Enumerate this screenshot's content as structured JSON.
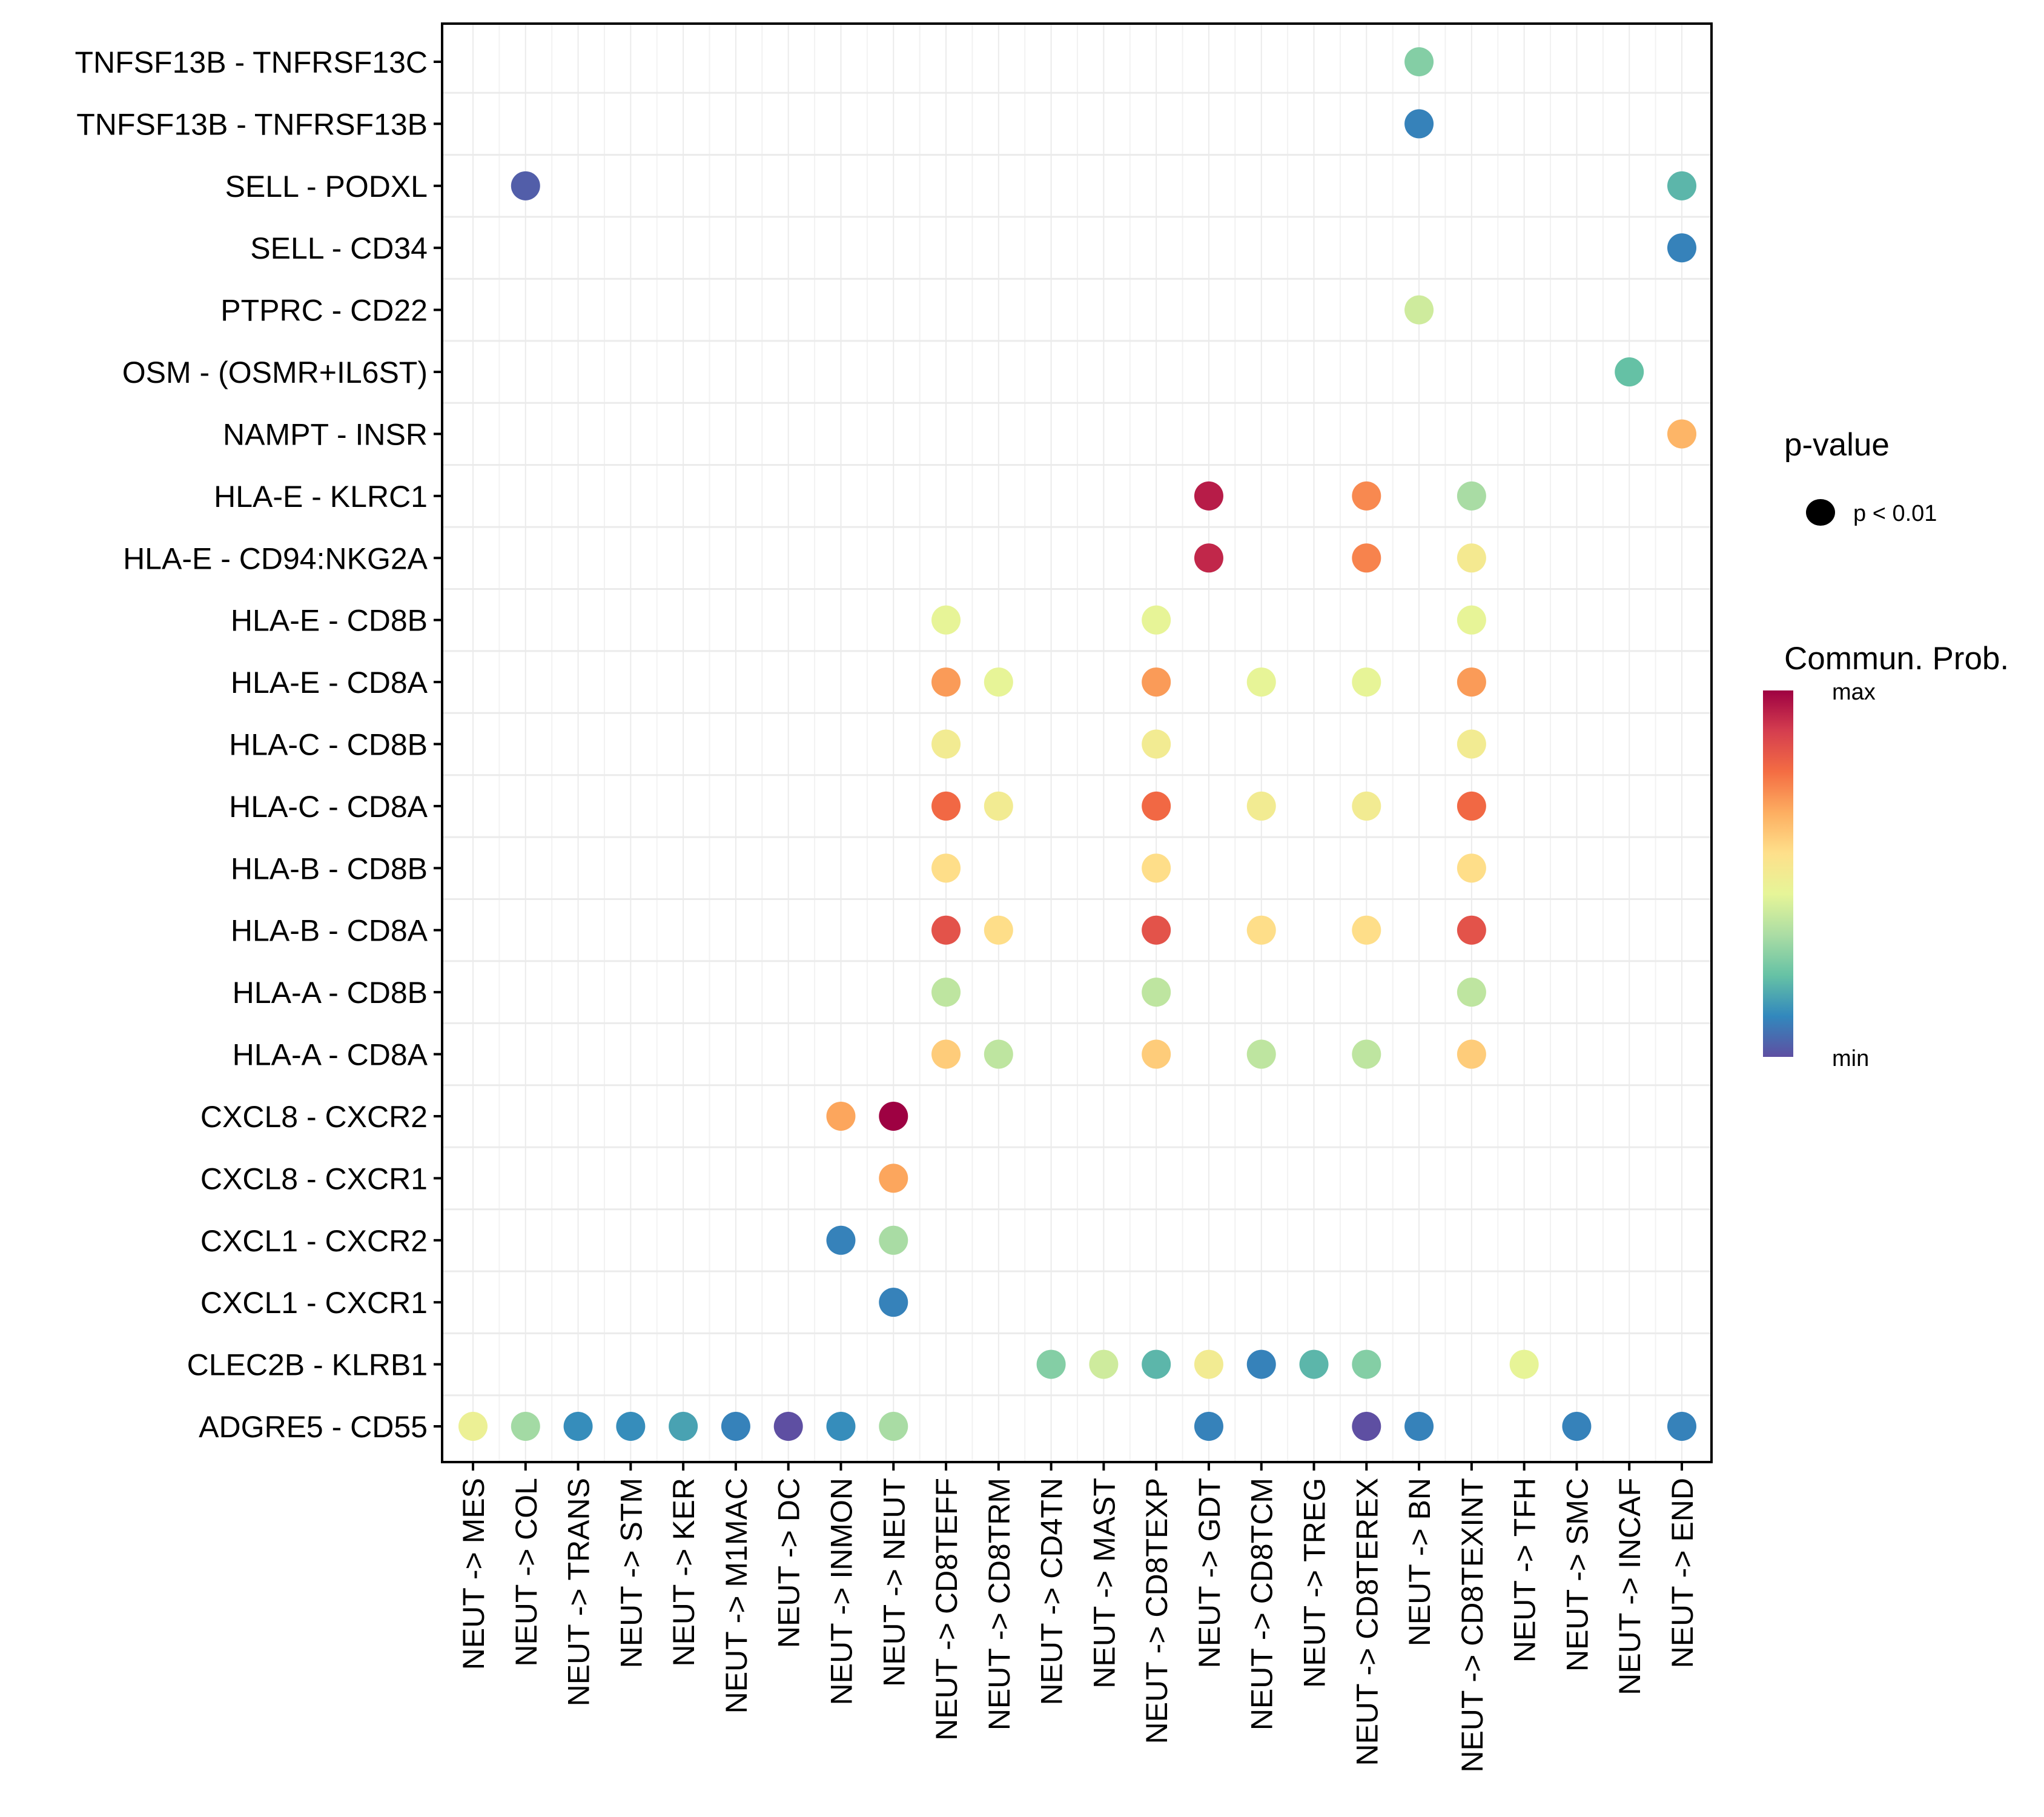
{
  "chart_data": {
    "type": "scatter",
    "subtype": "dot-matrix",
    "title": "",
    "xlabel": "",
    "ylabel": "",
    "grid": true,
    "legend_position": "right",
    "x_categories": [
      "NEUT -> MES",
      "NEUT -> COL",
      "NEUT -> TRANS",
      "NEUT -> STM",
      "NEUT -> KER",
      "NEUT -> M1MAC",
      "NEUT -> DC",
      "NEUT -> INMON",
      "NEUT -> NEUT",
      "NEUT -> CD8TEFF",
      "NEUT -> CD8TRM",
      "NEUT -> CD4TN",
      "NEUT -> MAST",
      "NEUT -> CD8TEXP",
      "NEUT -> GDT",
      "NEUT -> CD8TCM",
      "NEUT -> TREG",
      "NEUT -> CD8TEREX",
      "NEUT -> BN",
      "NEUT -> CD8TEXINT",
      "NEUT -> TFH",
      "NEUT -> SMC",
      "NEUT -> INCAF",
      "NEUT -> END"
    ],
    "y_categories_top_to_bottom": [
      "TNFSF13B - TNFRSF13C",
      "TNFSF13B - TNFRSF13B",
      "SELL - PODXL",
      "SELL - CD34",
      "PTPRC - CD22",
      "OSM - (OSMR+IL6ST)",
      "NAMPT - INSR",
      "HLA-E - KLRC1",
      "HLA-E - CD94:NKG2A",
      "HLA-E - CD8B",
      "HLA-E - CD8A",
      "HLA-C - CD8B",
      "HLA-C - CD8A",
      "HLA-B - CD8B",
      "HLA-B - CD8A",
      "HLA-A - CD8B",
      "HLA-A - CD8A",
      "CXCL8 - CXCR2",
      "CXCL8 - CXCR1",
      "CXCL1 - CXCR2",
      "CXCL1 - CXCR1",
      "CLEC2B - KLRB1",
      "ADGRE5 - CD55"
    ],
    "points_note": "x = source->target pair, y = ligand-receptor pair, prob = relative communication probability on 0 (min) to 1 (max) scale; all shown points have p < 0.01",
    "points": [
      {
        "x": "NEUT -> BN",
        "y": "TNFSF13B - TNFRSF13C",
        "prob": 0.27
      },
      {
        "x": "NEUT -> BN",
        "y": "TNFSF13B - TNFRSF13B",
        "prob": 0.1
      },
      {
        "x": "NEUT -> COL",
        "y": "SELL - PODXL",
        "prob": 0.03
      },
      {
        "x": "NEUT -> END",
        "y": "SELL - PODXL",
        "prob": 0.2
      },
      {
        "x": "NEUT -> END",
        "y": "SELL - CD34",
        "prob": 0.1
      },
      {
        "x": "NEUT -> BN",
        "y": "PTPRC - CD22",
        "prob": 0.4
      },
      {
        "x": "NEUT -> INCAF",
        "y": "OSM - (OSMR+IL6ST)",
        "prob": 0.22
      },
      {
        "x": "NEUT -> END",
        "y": "NAMPT - INSR",
        "prob": 0.65
      },
      {
        "x": "NEUT -> GDT",
        "y": "HLA-E - KLRC1",
        "prob": 0.95
      },
      {
        "x": "NEUT -> CD8TEREX",
        "y": "HLA-E - KLRC1",
        "prob": 0.73
      },
      {
        "x": "NEUT -> CD8TEXINT",
        "y": "HLA-E - KLRC1",
        "prob": 0.33
      },
      {
        "x": "NEUT -> GDT",
        "y": "HLA-E - CD94:NKG2A",
        "prob": 0.93
      },
      {
        "x": "NEUT -> CD8TEREX",
        "y": "HLA-E - CD94:NKG2A",
        "prob": 0.74
      },
      {
        "x": "NEUT -> CD8TEXINT",
        "y": "HLA-E - CD94:NKG2A",
        "prob": 0.51
      },
      {
        "x": "NEUT -> CD8TEFF",
        "y": "HLA-E - CD8B",
        "prob": 0.45
      },
      {
        "x": "NEUT -> CD8TEXP",
        "y": "HLA-E - CD8B",
        "prob": 0.45
      },
      {
        "x": "NEUT -> CD8TEXINT",
        "y": "HLA-E - CD8B",
        "prob": 0.45
      },
      {
        "x": "NEUT -> CD8TEFF",
        "y": "HLA-E - CD8A",
        "prob": 0.7
      },
      {
        "x": "NEUT -> CD8TRM",
        "y": "HLA-E - CD8A",
        "prob": 0.45
      },
      {
        "x": "NEUT -> CD8TEXP",
        "y": "HLA-E - CD8A",
        "prob": 0.7
      },
      {
        "x": "NEUT -> CD8TCM",
        "y": "HLA-E - CD8A",
        "prob": 0.45
      },
      {
        "x": "NEUT -> CD8TEREX",
        "y": "HLA-E - CD8A",
        "prob": 0.45
      },
      {
        "x": "NEUT -> CD8TEXINT",
        "y": "HLA-E - CD8A",
        "prob": 0.7
      },
      {
        "x": "NEUT -> CD8TEFF",
        "y": "HLA-C - CD8B",
        "prob": 0.5
      },
      {
        "x": "NEUT -> CD8TEXP",
        "y": "HLA-C - CD8B",
        "prob": 0.5
      },
      {
        "x": "NEUT -> CD8TEXINT",
        "y": "HLA-C - CD8B",
        "prob": 0.5
      },
      {
        "x": "NEUT -> CD8TEFF",
        "y": "HLA-C - CD8A",
        "prob": 0.79
      },
      {
        "x": "NEUT -> CD8TRM",
        "y": "HLA-C - CD8A",
        "prob": 0.5
      },
      {
        "x": "NEUT -> CD8TEXP",
        "y": "HLA-C - CD8A",
        "prob": 0.79
      },
      {
        "x": "NEUT -> CD8TCM",
        "y": "HLA-C - CD8A",
        "prob": 0.5
      },
      {
        "x": "NEUT -> CD8TEREX",
        "y": "HLA-C - CD8A",
        "prob": 0.5
      },
      {
        "x": "NEUT -> CD8TEXINT",
        "y": "HLA-C - CD8A",
        "prob": 0.79
      },
      {
        "x": "NEUT -> CD8TEFF",
        "y": "HLA-B - CD8B",
        "prob": 0.56
      },
      {
        "x": "NEUT -> CD8TEXP",
        "y": "HLA-B - CD8B",
        "prob": 0.56
      },
      {
        "x": "NEUT -> CD8TEXINT",
        "y": "HLA-B - CD8B",
        "prob": 0.56
      },
      {
        "x": "NEUT -> CD8TEFF",
        "y": "HLA-B - CD8A",
        "prob": 0.84
      },
      {
        "x": "NEUT -> CD8TRM",
        "y": "HLA-B - CD8A",
        "prob": 0.56
      },
      {
        "x": "NEUT -> CD8TEXP",
        "y": "HLA-B - CD8A",
        "prob": 0.84
      },
      {
        "x": "NEUT -> CD8TCM",
        "y": "HLA-B - CD8A",
        "prob": 0.56
      },
      {
        "x": "NEUT -> CD8TEREX",
        "y": "HLA-B - CD8A",
        "prob": 0.56
      },
      {
        "x": "NEUT -> CD8TEXINT",
        "y": "HLA-B - CD8A",
        "prob": 0.84
      },
      {
        "x": "NEUT -> CD8TEFF",
        "y": "HLA-A - CD8B",
        "prob": 0.37
      },
      {
        "x": "NEUT -> CD8TEXP",
        "y": "HLA-A - CD8B",
        "prob": 0.37
      },
      {
        "x": "NEUT -> CD8TEXINT",
        "y": "HLA-A - CD8B",
        "prob": 0.37
      },
      {
        "x": "NEUT -> CD8TEFF",
        "y": "HLA-A - CD8A",
        "prob": 0.6
      },
      {
        "x": "NEUT -> CD8TRM",
        "y": "HLA-A - CD8A",
        "prob": 0.37
      },
      {
        "x": "NEUT -> CD8TEXP",
        "y": "HLA-A - CD8A",
        "prob": 0.6
      },
      {
        "x": "NEUT -> CD8TCM",
        "y": "HLA-A - CD8A",
        "prob": 0.37
      },
      {
        "x": "NEUT -> CD8TEREX",
        "y": "HLA-A - CD8A",
        "prob": 0.37
      },
      {
        "x": "NEUT -> CD8TEXINT",
        "y": "HLA-A - CD8A",
        "prob": 0.6
      },
      {
        "x": "NEUT -> INMON",
        "y": "CXCL8 - CXCR2",
        "prob": 0.68
      },
      {
        "x": "NEUT -> NEUT",
        "y": "CXCL8 - CXCR2",
        "prob": 1.0
      },
      {
        "x": "NEUT -> NEUT",
        "y": "CXCL8 - CXCR1",
        "prob": 0.68
      },
      {
        "x": "NEUT -> INMON",
        "y": "CXCL1 - CXCR2",
        "prob": 0.1
      },
      {
        "x": "NEUT -> NEUT",
        "y": "CXCL1 - CXCR2",
        "prob": 0.33
      },
      {
        "x": "NEUT -> NEUT",
        "y": "CXCL1 - CXCR1",
        "prob": 0.1
      },
      {
        "x": "NEUT -> CD4TN",
        "y": "CLEC2B - KLRB1",
        "prob": 0.27
      },
      {
        "x": "NEUT -> MAST",
        "y": "CLEC2B - KLRB1",
        "prob": 0.4
      },
      {
        "x": "NEUT -> CD8TEXP",
        "y": "CLEC2B - KLRB1",
        "prob": 0.2
      },
      {
        "x": "NEUT -> GDT",
        "y": "CLEC2B - KLRB1",
        "prob": 0.5
      },
      {
        "x": "NEUT -> CD8TCM",
        "y": "CLEC2B - KLRB1",
        "prob": 0.1
      },
      {
        "x": "NEUT -> TREG",
        "y": "CLEC2B - KLRB1",
        "prob": 0.2
      },
      {
        "x": "NEUT -> CD8TEREX",
        "y": "CLEC2B - KLRB1",
        "prob": 0.27
      },
      {
        "x": "NEUT -> TFH",
        "y": "CLEC2B - KLRB1",
        "prob": 0.45
      },
      {
        "x": "NEUT -> MES",
        "y": "ADGRE5 - CD55",
        "prob": 0.47
      },
      {
        "x": "NEUT -> COL",
        "y": "ADGRE5 - CD55",
        "prob": 0.32
      },
      {
        "x": "NEUT -> TRANS",
        "y": "ADGRE5 - CD55",
        "prob": 0.12
      },
      {
        "x": "NEUT -> STM",
        "y": "ADGRE5 - CD55",
        "prob": 0.12
      },
      {
        "x": "NEUT -> KER",
        "y": "ADGRE5 - CD55",
        "prob": 0.16
      },
      {
        "x": "NEUT -> M1MAC",
        "y": "ADGRE5 - CD55",
        "prob": 0.1
      },
      {
        "x": "NEUT -> DC",
        "y": "ADGRE5 - CD55",
        "prob": 0.0
      },
      {
        "x": "NEUT -> INMON",
        "y": "ADGRE5 - CD55",
        "prob": 0.12
      },
      {
        "x": "NEUT -> NEUT",
        "y": "ADGRE5 - CD55",
        "prob": 0.33
      },
      {
        "x": "NEUT -> GDT",
        "y": "ADGRE5 - CD55",
        "prob": 0.1
      },
      {
        "x": "NEUT -> CD8TEREX",
        "y": "ADGRE5 - CD55",
        "prob": 0.0
      },
      {
        "x": "NEUT -> BN",
        "y": "ADGRE5 - CD55",
        "prob": 0.1
      },
      {
        "x": "NEUT -> SMC",
        "y": "ADGRE5 - CD55",
        "prob": 0.1
      },
      {
        "x": "NEUT -> END",
        "y": "ADGRE5 - CD55",
        "prob": 0.1
      }
    ],
    "color_scale": {
      "name": "Spectral (reversed)",
      "stops": [
        "#5E4FA2",
        "#3288BD",
        "#66C2A5",
        "#ABDDA4",
        "#E6F598",
        "#FEE08B",
        "#FDAE61",
        "#F46D43",
        "#D53E4F",
        "#9E0142"
      ]
    },
    "legends": {
      "size_legend": {
        "title": "p-value",
        "entries": [
          "p < 0.01"
        ]
      },
      "color_legend": {
        "title": "Commun. Prob.",
        "max_label": "max",
        "min_label": "min"
      }
    }
  }
}
